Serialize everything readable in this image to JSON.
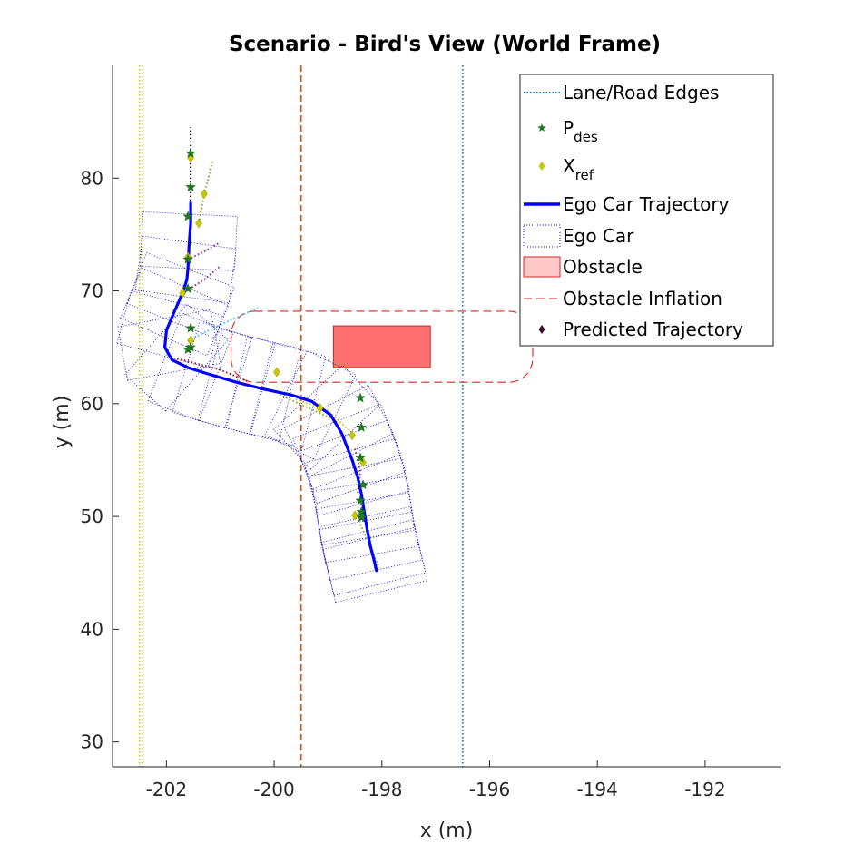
{
  "chart_data": {
    "type": "line",
    "title": "Scenario - Bird's View (World Frame)",
    "xlabel": "x (m)",
    "ylabel": "y (m)",
    "xlim": [
      -203,
      -190.6
    ],
    "ylim": [
      27.8,
      90
    ],
    "xticks": [
      -202,
      -200,
      -198,
      -196,
      -194,
      -192
    ],
    "yticks": [
      30,
      40,
      50,
      60,
      70,
      80
    ],
    "grid": false,
    "legend_position": "top-right",
    "lane_edges": [
      {
        "x": -202.5,
        "color": "#EDB120",
        "style": "dotted"
      },
      {
        "x": -202.45,
        "color": "#77AC30",
        "style": "dotted"
      },
      {
        "x": -199.5,
        "color": "#D95319",
        "style": "dashed"
      },
      {
        "x": -196.5,
        "color": "#0072BD",
        "style": "dotted"
      }
    ],
    "obstacle": {
      "x": [
        -198.9,
        -197.1
      ],
      "y": [
        63.2,
        66.9
      ],
      "color": "#FF7070"
    },
    "obstacle_inflation": {
      "x": [
        -200.8,
        -195.2
      ],
      "y": [
        61.9,
        68.2
      ],
      "color": "#D62728"
    },
    "ego_trajectory": {
      "color": "#0000FF",
      "x": [
        -201.55,
        -201.55,
        -201.58,
        -201.6,
        -201.62,
        -201.7,
        -201.85,
        -202.0,
        -202.03,
        -201.9,
        -201.6,
        -201.2,
        -200.7,
        -200.2,
        -199.7,
        -199.3,
        -198.95,
        -198.75,
        -198.65,
        -198.55,
        -198.45,
        -198.38,
        -198.33,
        -198.28,
        -198.22,
        -198.15,
        -198.1
      ],
      "y": [
        77.8,
        76.0,
        74.0,
        72.0,
        71.0,
        69.8,
        68.2,
        66.5,
        65.0,
        63.9,
        63.2,
        62.6,
        61.9,
        61.3,
        60.8,
        60.2,
        59.0,
        57.4,
        56.2,
        55.0,
        53.5,
        52.0,
        50.5,
        49.0,
        47.5,
        46.2,
        45.2
      ]
    },
    "p_des": {
      "color": "#1E7B1E",
      "x": [
        -201.55,
        -201.55,
        -201.6,
        -201.6,
        -201.6,
        -201.55,
        -201.55,
        -201.6,
        -198.4,
        -198.38,
        -198.4,
        -198.35,
        -198.4,
        -198.38,
        -198.38
      ],
      "y": [
        82.2,
        79.2,
        76.6,
        72.8,
        70.2,
        66.7,
        65.0,
        64.8,
        60.5,
        57.9,
        55.2,
        52.8,
        51.4,
        50.4,
        49.9
      ]
    },
    "x_ref": {
      "color": "#C8C800",
      "x": [
        -201.55,
        -201.3,
        -201.4,
        -201.6,
        -201.7,
        -201.55,
        -199.95,
        -199.15,
        -198.55,
        -198.35,
        -198.5
      ],
      "y": [
        81.8,
        78.6,
        76.0,
        73.0,
        69.8,
        65.6,
        62.8,
        59.6,
        57.2,
        54.8,
        50.1
      ]
    },
    "legend": [
      {
        "label": "Lane/Road Edges",
        "sub": ""
      },
      {
        "label": "P",
        "sub": "des"
      },
      {
        "label": "X",
        "sub": "ref"
      },
      {
        "label": "Ego Car Trajectory",
        "sub": ""
      },
      {
        "label": "Ego Car",
        "sub": ""
      },
      {
        "label": "Obstacle",
        "sub": ""
      },
      {
        "label": "Obstacle Inflation",
        "sub": ""
      },
      {
        "label": "Predicted Trajectory",
        "sub": ""
      }
    ]
  }
}
